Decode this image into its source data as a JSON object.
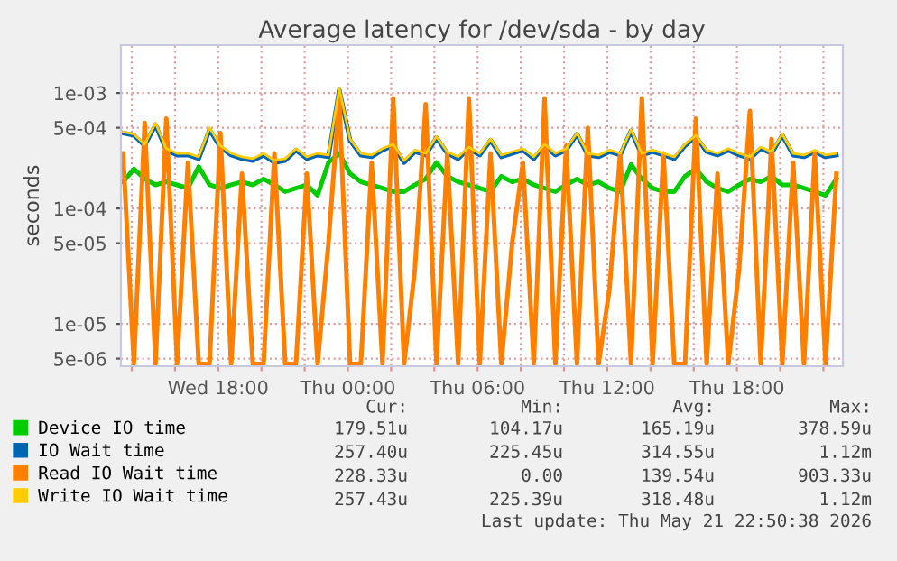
{
  "chart_data": {
    "type": "line",
    "title": "Average latency for /dev/sda - by day",
    "ylabel": "seconds",
    "x": [
      "2026-05-20T13:36",
      "2026-05-20T14:06",
      "2026-05-20T14:36",
      "2026-05-20T15:06",
      "2026-05-20T15:36",
      "2026-05-20T16:06",
      "2026-05-20T16:36",
      "2026-05-20T17:06",
      "2026-05-20T17:36",
      "2026-05-20T18:06",
      "2026-05-20T18:36",
      "2026-05-20T19:06",
      "2026-05-20T19:36",
      "2026-05-20T20:06",
      "2026-05-20T20:36",
      "2026-05-20T21:06",
      "2026-05-20T21:36",
      "2026-05-20T22:06",
      "2026-05-20T22:36",
      "2026-05-20T23:06",
      "2026-05-20T23:36",
      "2026-05-21T00:06",
      "2026-05-21T00:36",
      "2026-05-21T01:06",
      "2026-05-21T01:36",
      "2026-05-21T02:06",
      "2026-05-21T02:36",
      "2026-05-21T03:06",
      "2026-05-21T03:36",
      "2026-05-21T04:06",
      "2026-05-21T04:36",
      "2026-05-21T05:06",
      "2026-05-21T05:36",
      "2026-05-21T06:06",
      "2026-05-21T06:36",
      "2026-05-21T07:06",
      "2026-05-21T07:36",
      "2026-05-21T08:06",
      "2026-05-21T08:36",
      "2026-05-21T09:06",
      "2026-05-21T09:36",
      "2026-05-21T10:06",
      "2026-05-21T10:36",
      "2026-05-21T11:06",
      "2026-05-21T11:36",
      "2026-05-21T12:06",
      "2026-05-21T12:36",
      "2026-05-21T13:06",
      "2026-05-21T13:36",
      "2026-05-21T14:06",
      "2026-05-21T14:36",
      "2026-05-21T15:06",
      "2026-05-21T15:36",
      "2026-05-21T16:06",
      "2026-05-21T16:36",
      "2026-05-21T17:06",
      "2026-05-21T17:36",
      "2026-05-21T18:06",
      "2026-05-21T18:36",
      "2026-05-21T19:06",
      "2026-05-21T19:36",
      "2026-05-21T20:06",
      "2026-05-21T20:36",
      "2026-05-21T21:06",
      "2026-05-21T21:36",
      "2026-05-21T22:06",
      "2026-05-21T22:36"
    ],
    "series": [
      {
        "name": "Device IO time",
        "color": "#00cc00",
        "values": [
          0.00017,
          0.00022,
          0.00018,
          0.00016,
          0.00017,
          0.00016,
          0.00015,
          0.00023,
          0.00016,
          0.00015,
          0.00016,
          0.00017,
          0.00016,
          0.00018,
          0.00016,
          0.00014,
          0.00015,
          0.00016,
          0.00013,
          0.00025,
          0.0003,
          0.0002,
          0.00017,
          0.00016,
          0.00015,
          0.00014,
          0.00014,
          0.00016,
          0.00018,
          0.00025,
          0.00019,
          0.00017,
          0.00016,
          0.00015,
          0.00014,
          0.00019,
          0.00017,
          0.00018,
          0.00016,
          0.00015,
          0.00014,
          0.00016,
          0.00018,
          0.00016,
          0.00017,
          0.00015,
          0.00014,
          0.00024,
          0.00018,
          0.00015,
          0.00014,
          0.00014,
          0.00019,
          0.00022,
          0.00017,
          0.00015,
          0.00014,
          0.00016,
          0.00018,
          0.00017,
          0.00019,
          0.00016,
          0.00016,
          0.00015,
          0.00014,
          0.00013,
          0.00018
        ]
      },
      {
        "name": "IO Wait time",
        "color": "#0066b3",
        "values": [
          0.00045,
          0.00043,
          0.00035,
          0.00053,
          0.00032,
          0.00029,
          0.00029,
          0.00027,
          0.00048,
          0.00034,
          0.00029,
          0.00027,
          0.00026,
          0.00029,
          0.00025,
          0.00026,
          0.00032,
          0.00027,
          0.00029,
          0.00028,
          0.00106,
          0.00039,
          0.00029,
          0.00028,
          0.00032,
          0.00035,
          0.00025,
          0.00031,
          0.00029,
          0.00041,
          0.0003,
          0.00027,
          0.00033,
          0.00029,
          0.00039,
          0.00028,
          0.0003,
          0.00032,
          0.00027,
          0.00035,
          0.00029,
          0.00032,
          0.00044,
          0.00029,
          0.00028,
          0.00031,
          0.00029,
          0.00047,
          0.00029,
          0.00031,
          0.00029,
          0.00027,
          0.00035,
          0.00042,
          0.00031,
          0.00029,
          0.00032,
          0.00029,
          0.00027,
          0.00033,
          0.0003,
          0.00043,
          0.00029,
          0.00028,
          0.00031,
          0.00028,
          0.00029
        ]
      },
      {
        "name": "Read IO Wait time",
        "color": "#ff8000",
        "values": [
          0.0003,
          4.5e-06,
          0.00055,
          4.5e-06,
          0.0006,
          4.5e-06,
          0.00025,
          4.5e-06,
          4.5e-06,
          0.00045,
          4.5e-06,
          0.0002,
          4.5e-06,
          4.5e-06,
          0.0003,
          4.5e-06,
          4.5e-06,
          0.0002,
          4.5e-06,
          5e-05,
          0.0009,
          4.5e-06,
          4.5e-06,
          0.00025,
          4.5e-06,
          0.0009,
          4.5e-06,
          3e-05,
          0.0008,
          4.5e-06,
          0.0003,
          4.5e-06,
          0.0009,
          4.5e-06,
          0.0003,
          4.5e-06,
          5e-05,
          0.00025,
          4.5e-06,
          0.0009,
          4.5e-06,
          0.00035,
          4.5e-06,
          0.0005,
          4.5e-06,
          2e-05,
          0.0003,
          4.5e-06,
          0.0009,
          4.5e-06,
          0.0003,
          4.5e-06,
          4.5e-06,
          0.0006,
          4.5e-06,
          0.0002,
          4.5e-06,
          3e-05,
          0.0007,
          4.5e-06,
          0.0004,
          4.5e-06,
          0.00025,
          4.5e-06,
          0.0003,
          4.5e-06,
          0.0002
        ]
      },
      {
        "name": "Write IO Wait time",
        "color": "#ffcc00",
        "values": [
          0.00046,
          0.00044,
          0.00036,
          0.00055,
          0.00033,
          0.0003,
          0.0003,
          0.00028,
          0.0005,
          0.00035,
          0.0003,
          0.00028,
          0.00027,
          0.0003,
          0.00026,
          0.00027,
          0.00033,
          0.00028,
          0.0003,
          0.00029,
          0.0011,
          0.0004,
          0.0003,
          0.00029,
          0.00033,
          0.00036,
          0.00026,
          0.00032,
          0.0003,
          0.00042,
          0.00031,
          0.00028,
          0.00034,
          0.0003,
          0.0004,
          0.00029,
          0.00031,
          0.00033,
          0.00028,
          0.00036,
          0.0003,
          0.00033,
          0.00045,
          0.0003,
          0.00029,
          0.00032,
          0.0003,
          0.00048,
          0.0003,
          0.00032,
          0.0003,
          0.00028,
          0.00036,
          0.00043,
          0.00032,
          0.0003,
          0.00033,
          0.0003,
          0.00028,
          0.00034,
          0.00031,
          0.00044,
          0.0003,
          0.00029,
          0.00032,
          0.00029,
          0.0003
        ]
      }
    ],
    "log": true,
    "xlim": [
      "2026-05-20T13:30",
      "2026-05-21T22:54"
    ],
    "ylim": [
      4.3e-06,
      0.0026
    ],
    "xticks": [
      {
        "value": "2026-05-20T14:00",
        "label": null
      },
      {
        "value": "2026-05-20T16:00",
        "label": null
      },
      {
        "value": "2026-05-20T18:00",
        "label": "Wed 18:00"
      },
      {
        "value": "2026-05-20T20:00",
        "label": null
      },
      {
        "value": "2026-05-20T22:00",
        "label": null
      },
      {
        "value": "2026-05-21T00:00",
        "label": "Thu 00:00"
      },
      {
        "value": "2026-05-21T02:00",
        "label": null
      },
      {
        "value": "2026-05-21T04:00",
        "label": null
      },
      {
        "value": "2026-05-21T06:00",
        "label": "Thu 06:00"
      },
      {
        "value": "2026-05-21T08:00",
        "label": null
      },
      {
        "value": "2026-05-21T10:00",
        "label": null
      },
      {
        "value": "2026-05-21T12:00",
        "label": "Thu 12:00"
      },
      {
        "value": "2026-05-21T14:00",
        "label": null
      },
      {
        "value": "2026-05-21T16:00",
        "label": null
      },
      {
        "value": "2026-05-21T18:00",
        "label": "Thu 18:00"
      },
      {
        "value": "2026-05-21T20:00",
        "label": null
      },
      {
        "value": "2026-05-21T22:00",
        "label": null
      }
    ],
    "yticks": [
      {
        "value": 5e-06,
        "label": "5e-06"
      },
      {
        "value": 1e-05,
        "label": "1e-05"
      },
      {
        "value": 5e-05,
        "label": "5e-05"
      },
      {
        "value": 0.0001,
        "label": "1e-04"
      },
      {
        "value": 0.0005,
        "label": "5e-04"
      },
      {
        "value": 0.001,
        "label": "1e-03"
      }
    ],
    "grid": true,
    "legend": "bottom",
    "line_style": "solid",
    "marker": "none",
    "annotations": [
      "Cur:",
      "Min:",
      "Avg:",
      "Max:",
      "179.51u",
      "104.17u",
      "165.19u",
      "378.59u",
      "257.40u",
      "225.45u",
      "314.55u",
      "1.12m",
      "228.33u",
      "0.00",
      "139.54u",
      "903.33u",
      "257.43u",
      "225.39u",
      "318.48u",
      "1.12m",
      "Last update: Thu May 21 22:50:38 2026"
    ]
  }
}
